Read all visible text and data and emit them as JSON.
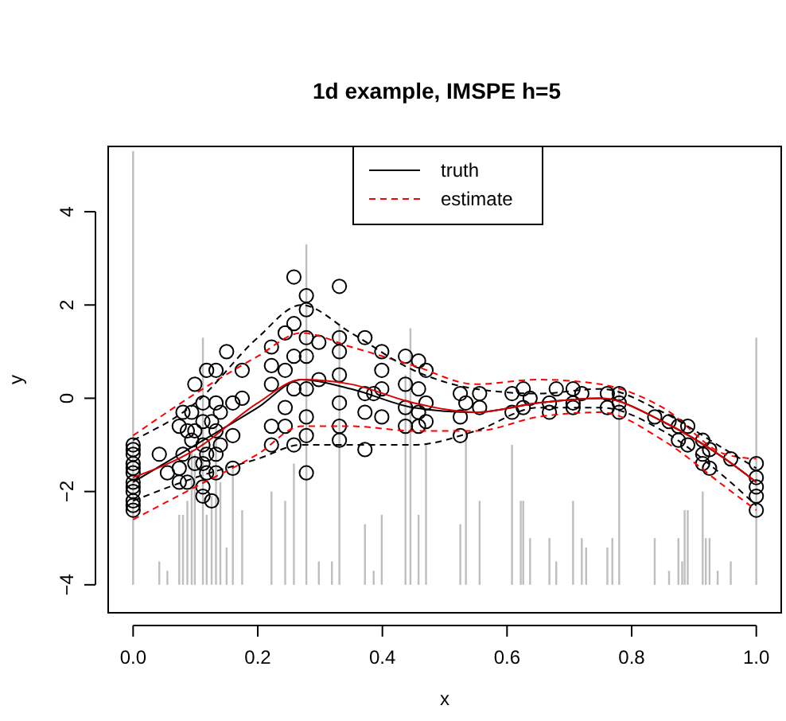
{
  "chart_data": {
    "type": "scatter",
    "title": "1d example, IMSPE h=5",
    "xlabel": "x",
    "ylabel": "y",
    "xlim": [
      -0.04,
      1.04
    ],
    "ylim": [
      -4.6,
      5.4
    ],
    "xticks": [
      {
        "value": 0,
        "label": "0.0"
      },
      0.2,
      0.4,
      0.6,
      0.8,
      {
        "value": 1,
        "label": "1.0"
      }
    ],
    "yticks": [
      {
        "value": -4,
        "label": "−4"
      },
      {
        "value": -2,
        "label": "−2"
      },
      0,
      2,
      4
    ],
    "grid": false,
    "legend": "top",
    "series": [
      {
        "type": "bar",
        "color": "#bebebe",
        "x": [
          0,
          0.042,
          0.055,
          0.074,
          0.08,
          0.087,
          0.094,
          0.099,
          0.112,
          0.118,
          0.126,
          0.133,
          0.14,
          0.15,
          0.16,
          0.175,
          0.222,
          0.244,
          0.258,
          0.278,
          0.298,
          0.319,
          0.331,
          0.372,
          0.386,
          0.399,
          0.437,
          0.445,
          0.458,
          0.47,
          0.525,
          0.534,
          0.556,
          0.608,
          0.622,
          0.626,
          0.637,
          0.668,
          0.679,
          0.706,
          0.72,
          0.727,
          0.761,
          0.769,
          0.78,
          0.837,
          0.86,
          0.875,
          0.881,
          0.885,
          0.89,
          0.914,
          0.919,
          0.925,
          0.938,
          0.959,
          1
        ],
        "base": [
          -4,
          -4,
          -4,
          -4,
          -4,
          -4,
          -4,
          -4,
          -4,
          -4,
          -4,
          -4,
          -4,
          -4,
          -4,
          -4,
          -4,
          -4,
          -4,
          -4,
          -4,
          -4,
          -4,
          -4,
          -4,
          -4,
          -4,
          -4,
          -4,
          -4,
          -4,
          -4,
          -4,
          -4,
          -4,
          -4,
          -4,
          -4,
          -4,
          -4,
          -4,
          -4,
          -4,
          -4,
          -4,
          -4,
          -4,
          -4,
          -4,
          -4,
          -4,
          -4,
          -4,
          -4,
          -4,
          -4,
          -4
        ],
        "values": [
          9.3,
          0.5,
          0.3,
          1.5,
          1.5,
          1.8,
          2.9,
          2.8,
          5.3,
          1.5,
          1.9,
          3.4,
          2.2,
          0.8,
          2.5,
          1.6,
          2,
          1.8,
          2.6,
          7.3,
          0.5,
          0.5,
          5.6,
          1.3,
          0.3,
          1.5,
          4.5,
          5.5,
          1.5,
          3,
          1.3,
          3.3,
          1.8,
          3,
          1.8,
          1.8,
          1,
          1,
          0.5,
          1.8,
          1,
          0.8,
          0.8,
          1,
          4.2,
          1,
          0.3,
          1,
          0.5,
          1.6,
          1.6,
          2,
          1,
          1,
          0.3,
          0.5,
          5.3
        ]
      },
      {
        "color": "#000000",
        "marker": "circle",
        "x": [
          0,
          0,
          0,
          0,
          0,
          0,
          0,
          0,
          0,
          0,
          0,
          0,
          0.042,
          0.055,
          0.074,
          0.074,
          0.074,
          0.08,
          0.08,
          0.087,
          0.087,
          0.094,
          0.094,
          0.099,
          0.099,
          0.099,
          0.112,
          0.112,
          0.112,
          0.112,
          0.112,
          0.112,
          0.118,
          0.118,
          0.118,
          0.126,
          0.126,
          0.133,
          0.133,
          0.133,
          0.133,
          0.133,
          0.14,
          0.14,
          0.15,
          0.16,
          0.16,
          0.16,
          0.175,
          0.175,
          0.222,
          0.222,
          0.222,
          0.222,
          0.222,
          0.244,
          0.244,
          0.244,
          0.244,
          0.258,
          0.258,
          0.258,
          0.258,
          0.258,
          0.278,
          0.278,
          0.278,
          0.278,
          0.278,
          0.278,
          0.278,
          0.278,
          0.298,
          0.298,
          0.331,
          0.331,
          0.331,
          0.331,
          0.331,
          0.331,
          0.331,
          0.372,
          0.372,
          0.372,
          0.372,
          0.386,
          0.399,
          0.399,
          0.399,
          0.399,
          0.437,
          0.437,
          0.437,
          0.437,
          0.458,
          0.458,
          0.458,
          0.458,
          0.47,
          0.47,
          0.47,
          0.525,
          0.525,
          0.525,
          0.534,
          0.556,
          0.556,
          0.608,
          0.608,
          0.626,
          0.626,
          0.637,
          0.668,
          0.668,
          0.679,
          0.706,
          0.706,
          0.706,
          0.72,
          0.761,
          0.761,
          0.78,
          0.78,
          0.78,
          0.837,
          0.86,
          0.875,
          0.875,
          0.89,
          0.89,
          0.914,
          0.914,
          0.914,
          0.925,
          0.925,
          0.959,
          1,
          1,
          1,
          1,
          1
        ],
        "values": [
          -2.4,
          -2.2,
          -2,
          -1.8,
          -1.6,
          -1.4,
          -1.2,
          -1,
          -2.3,
          -1.9,
          -1.5,
          -1.1,
          -1.2,
          -1.6,
          -0.6,
          -1.5,
          -1.8,
          -0.3,
          -1.2,
          -0.7,
          -1.8,
          -0.9,
          -0.3,
          0.3,
          -0.7,
          -1.4,
          -0.1,
          -0.5,
          -1,
          -1.4,
          -1.9,
          -2.1,
          0.6,
          -1.2,
          -1.6,
          -0.5,
          -2.2,
          0.6,
          -0.1,
          -0.7,
          -1.2,
          -1.6,
          -0.3,
          -1,
          1,
          -0.1,
          -0.8,
          -1.5,
          0.6,
          0,
          1.1,
          0.7,
          0.3,
          -0.6,
          -1,
          1.4,
          0.6,
          -0.2,
          -0.6,
          2.6,
          1.6,
          0.9,
          0.2,
          -1,
          2.2,
          1.9,
          1.3,
          0.9,
          0.2,
          -0.4,
          -0.8,
          -1.6,
          1.2,
          0.4,
          2.4,
          1.3,
          1,
          0.5,
          -0.1,
          -0.6,
          -0.9,
          1.3,
          0.1,
          -0.3,
          -1.1,
          0.1,
          1,
          0.6,
          0.2,
          -0.4,
          0.9,
          0.3,
          -0.2,
          -0.6,
          0.8,
          0.2,
          -0.3,
          -0.6,
          0.6,
          -0.1,
          -0.5,
          0.1,
          -0.4,
          -0.8,
          -0.1,
          0.1,
          -0.2,
          0.1,
          -0.3,
          0.2,
          -0.2,
          0,
          -0.1,
          -0.3,
          0.2,
          0.2,
          -0.1,
          -0.2,
          0.1,
          0.1,
          -0.2,
          0.1,
          -0.1,
          -0.3,
          -0.4,
          -0.5,
          -0.6,
          -0.9,
          -0.6,
          -1,
          -0.9,
          -1.2,
          -1.4,
          -1.1,
          -1.5,
          -1.3,
          -1.4,
          -1.7,
          -1.9,
          -2.1,
          -2.4
        ]
      },
      {
        "type": "line",
        "name": "truth",
        "color": "#000000",
        "line_style": "solid",
        "x": [
          0,
          0.1,
          0.2,
          0.27,
          0.35,
          0.45,
          0.55,
          0.65,
          0.75,
          0.85,
          0.95,
          1
        ],
        "values": [
          -1.8,
          -1,
          -0.2,
          0.4,
          0.2,
          -0.2,
          -0.3,
          -0.1,
          0,
          -0.5,
          -1.3,
          -1.8
        ]
      },
      {
        "type": "line",
        "color": "#dd0000",
        "line_style": "solid",
        "x": [
          0,
          0.1,
          0.2,
          0.27,
          0.35,
          0.45,
          0.55,
          0.65,
          0.75,
          0.85,
          0.95,
          1
        ],
        "values": [
          -1.7,
          -1.1,
          -0.1,
          0.4,
          0.3,
          -0.1,
          -0.3,
          -0.1,
          0,
          -0.5,
          -1.3,
          -1.8
        ]
      },
      {
        "type": "line",
        "name": "estimate",
        "color": "#ff0000",
        "line_style": "dashed",
        "x": [
          0,
          0.1,
          0.2,
          0.27,
          0.35,
          0.45,
          0.55,
          0.65,
          0.75,
          0.85,
          0.95,
          1
        ],
        "values": [
          -0.8,
          0.1,
          0.9,
          1.4,
          1.1,
          0.7,
          0.3,
          0.4,
          0.3,
          -0.2,
          -1.2,
          -1.3
        ]
      },
      {
        "type": "line",
        "color": "#ff0000",
        "line_style": "dashed",
        "x": [
          0,
          0.1,
          0.2,
          0.27,
          0.35,
          0.45,
          0.55,
          0.65,
          0.75,
          0.85,
          0.95,
          1
        ],
        "values": [
          -2.6,
          -1.9,
          -1.2,
          -0.6,
          -0.6,
          -0.7,
          -0.7,
          -0.4,
          -0.3,
          -0.9,
          -1.9,
          -2.4
        ]
      },
      {
        "type": "line",
        "color": "#000000",
        "line_style": "dashed",
        "x": [
          0,
          0.1,
          0.2,
          0.27,
          0.35,
          0.45,
          0.55,
          0.65,
          0.75,
          0.85,
          0.95,
          1
        ],
        "values": [
          -0.9,
          -0.1,
          1.3,
          2,
          1.4,
          0.6,
          0.2,
          0.1,
          0.2,
          -0.3,
          -1.1,
          -1.5
        ]
      },
      {
        "type": "line",
        "color": "#000000",
        "line_style": "dashed",
        "x": [
          0,
          0.1,
          0.2,
          0.27,
          0.35,
          0.45,
          0.55,
          0.65,
          0.75,
          0.85,
          0.95,
          1
        ],
        "values": [
          -2.2,
          -1.7,
          -1.3,
          -1,
          -1,
          -1,
          -0.7,
          -0.2,
          -0.2,
          -0.7,
          -1.7,
          -2.3
        ]
      }
    ]
  }
}
